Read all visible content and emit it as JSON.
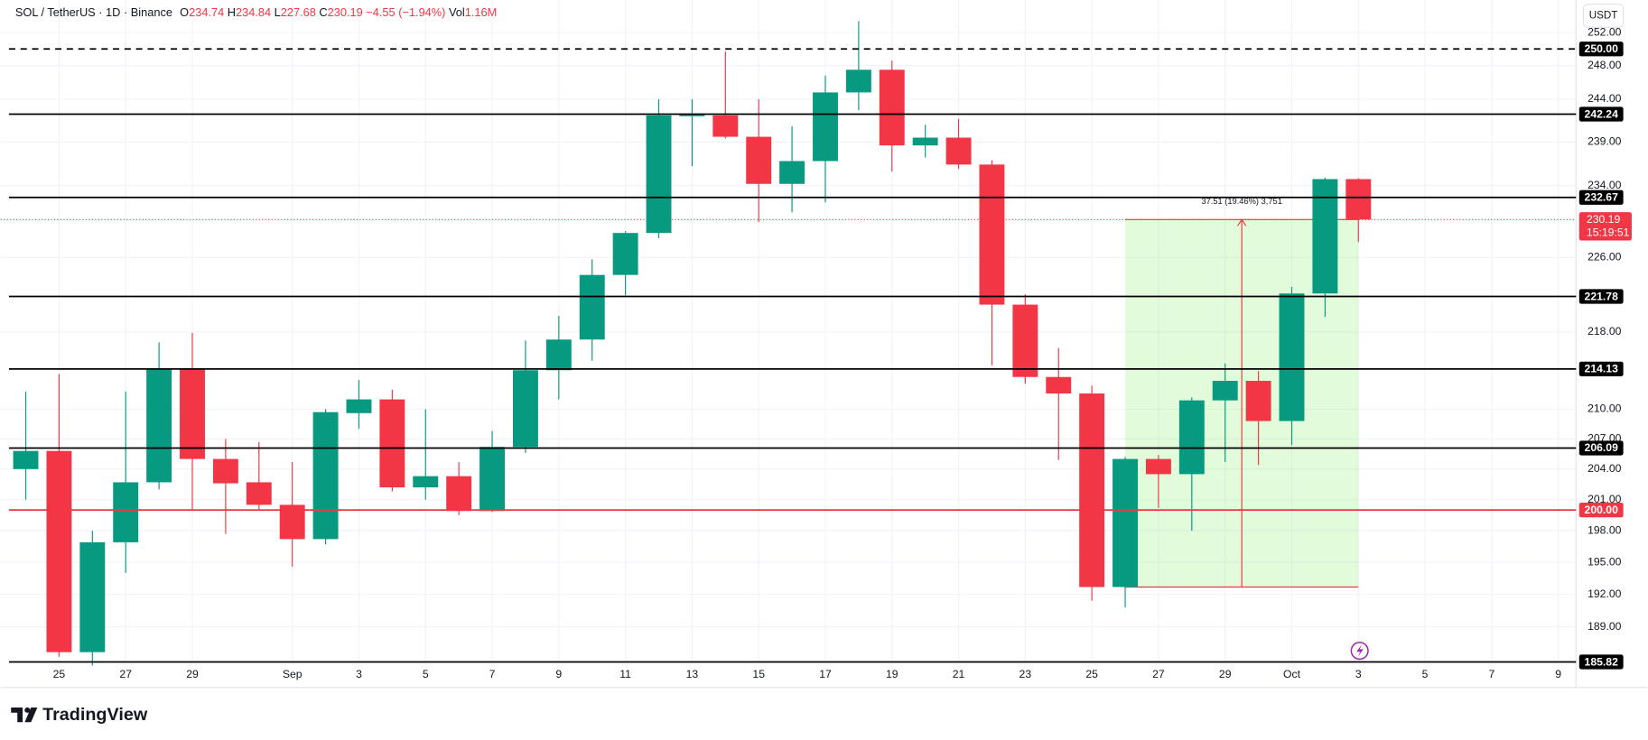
{
  "chart_data": {
    "type": "candlestick",
    "symbol": "SOL / TetherUS · 1D · Binance",
    "ohlc_legend": [
      {
        "key": "O",
        "text": "234.74"
      },
      {
        "key": "H",
        "text": "234.84"
      },
      {
        "key": "L",
        "text": "227.68"
      },
      {
        "key": "C",
        "text": "230.19"
      }
    ],
    "change": "−4.55 (−1.94%)",
    "volume_key": "Vol",
    "volume": "1.16M",
    "currency": "USDT",
    "branding": "TradingView",
    "categories": [
      null,
      "25",
      null,
      "27",
      null,
      "29",
      null,
      null,
      "Sep",
      null,
      "3",
      null,
      "5",
      null,
      "7",
      null,
      "9",
      null,
      "11",
      null,
      "13",
      null,
      "15",
      null,
      "17",
      null,
      "19",
      null,
      "21",
      null,
      "23",
      null,
      "25",
      null,
      "27",
      null,
      "29",
      null,
      "Oct",
      null,
      "3",
      null,
      "5",
      null,
      "7",
      null,
      "9"
    ],
    "open": [
      204.0,
      205.8,
      186.7,
      196.9,
      202.7,
      214.2,
      205.0,
      202.7,
      200.5,
      197.2,
      209.6,
      211.0,
      202.2,
      203.3,
      199.9,
      206.2,
      214.0,
      217.2,
      224.1,
      228.7,
      242.0,
      242.1,
      239.6,
      234.2,
      236.8,
      244.8,
      247.5,
      238.6,
      239.5,
      236.4,
      220.9,
      213.3,
      211.6,
      192.68,
      205.0,
      203.5,
      210.9,
      212.9,
      208.8,
      222.1,
      234.74,
      null,
      null,
      null,
      null,
      null,
      null
    ],
    "high": [
      211.8,
      213.6,
      198.0,
      211.8,
      216.9,
      217.9,
      207.0,
      206.7,
      204.7,
      210.0,
      213.0,
      212.0,
      210.0,
      204.7,
      207.8,
      217.1,
      219.7,
      225.8,
      228.9,
      244.0,
      244.0,
      249.7,
      244.0,
      240.8,
      246.8,
      253.4,
      248.6,
      241.0,
      241.7,
      236.9,
      222.0,
      216.3,
      212.4,
      205.2,
      205.4,
      211.2,
      214.7,
      213.9,
      222.8,
      234.9,
      234.84,
      null,
      null,
      null,
      null,
      null,
      null
    ],
    "low": [
      201.0,
      186.3,
      185.5,
      194.0,
      202.0,
      199.9,
      197.7,
      200.0,
      194.6,
      196.7,
      208.0,
      201.8,
      201.0,
      199.5,
      199.8,
      205.6,
      211.0,
      215.0,
      221.9,
      228.1,
      236.2,
      239.4,
      229.9,
      231.0,
      232.1,
      242.7,
      235.6,
      237.2,
      235.9,
      214.5,
      212.6,
      204.9,
      191.4,
      190.8,
      200.2,
      198.0,
      204.7,
      204.4,
      206.4,
      219.6,
      227.68,
      null,
      null,
      null,
      null,
      null,
      null
    ],
    "close": [
      205.8,
      186.7,
      196.9,
      202.7,
      214.2,
      205.0,
      202.6,
      200.5,
      197.2,
      209.7,
      211.0,
      202.2,
      203.3,
      199.9,
      206.2,
      214.0,
      217.2,
      224.1,
      228.7,
      242.1,
      242.3,
      239.6,
      234.2,
      236.8,
      244.8,
      247.5,
      238.6,
      239.5,
      236.4,
      220.9,
      213.3,
      211.6,
      192.68,
      205.0,
      203.5,
      210.9,
      212.9,
      208.8,
      222.1,
      234.74,
      230.19,
      null,
      null,
      null,
      null,
      null,
      null
    ],
    "up_color": "#089981",
    "down_color": "#f23645",
    "log_scale": true,
    "grid": true,
    "ylim": [
      185.5,
      256
    ],
    "yticks": [
      {
        "value": 252,
        "label": "252.00"
      },
      {
        "value": 248,
        "label": "248.00"
      },
      {
        "value": 244,
        "label": "244.00"
      },
      {
        "value": 239,
        "label": "239.00"
      },
      {
        "value": 234,
        "label": "234.00"
      },
      {
        "value": 226,
        "label": "226.00"
      },
      {
        "value": 218,
        "label": "218.00"
      },
      {
        "value": 210,
        "label": "210.00"
      },
      {
        "value": 207,
        "label": "207.00"
      },
      {
        "value": 204,
        "label": "204.00"
      },
      {
        "value": 201,
        "label": "201.00"
      },
      {
        "value": 198,
        "label": "198.00"
      },
      {
        "value": 195,
        "label": "195.00"
      },
      {
        "value": 192,
        "label": "192.00"
      },
      {
        "value": 189,
        "label": "189.00"
      }
    ],
    "levels": [
      {
        "value": 250,
        "label": "250.00",
        "color": "#000000",
        "dashed": true
      },
      {
        "value": 242.24,
        "label": "242.24",
        "color": "#000000",
        "dashed": false
      },
      {
        "value": 232.67,
        "label": "232.67",
        "color": "#000000",
        "dashed": false
      },
      {
        "value": 221.78,
        "label": "221.78",
        "color": "#000000",
        "dashed": false
      },
      {
        "value": 214.13,
        "label": "214.13",
        "color": "#000000",
        "dashed": false
      },
      {
        "value": 206.09,
        "label": "206.09",
        "color": "#000000",
        "dashed": false
      },
      {
        "value": 200,
        "label": "200.00",
        "color": "#f23645",
        "dashed": false
      },
      {
        "value": 185.82,
        "label": "185.82",
        "color": "#000000",
        "dashed": false
      }
    ],
    "last_price": {
      "value": 230.19,
      "label": "230.19",
      "countdown": "15:19:51",
      "color": "#f23645"
    },
    "price_range": {
      "label": "37.51 (19.46%) 3,751",
      "low": 192.68,
      "high": 230.19,
      "color": "#f23645"
    }
  }
}
